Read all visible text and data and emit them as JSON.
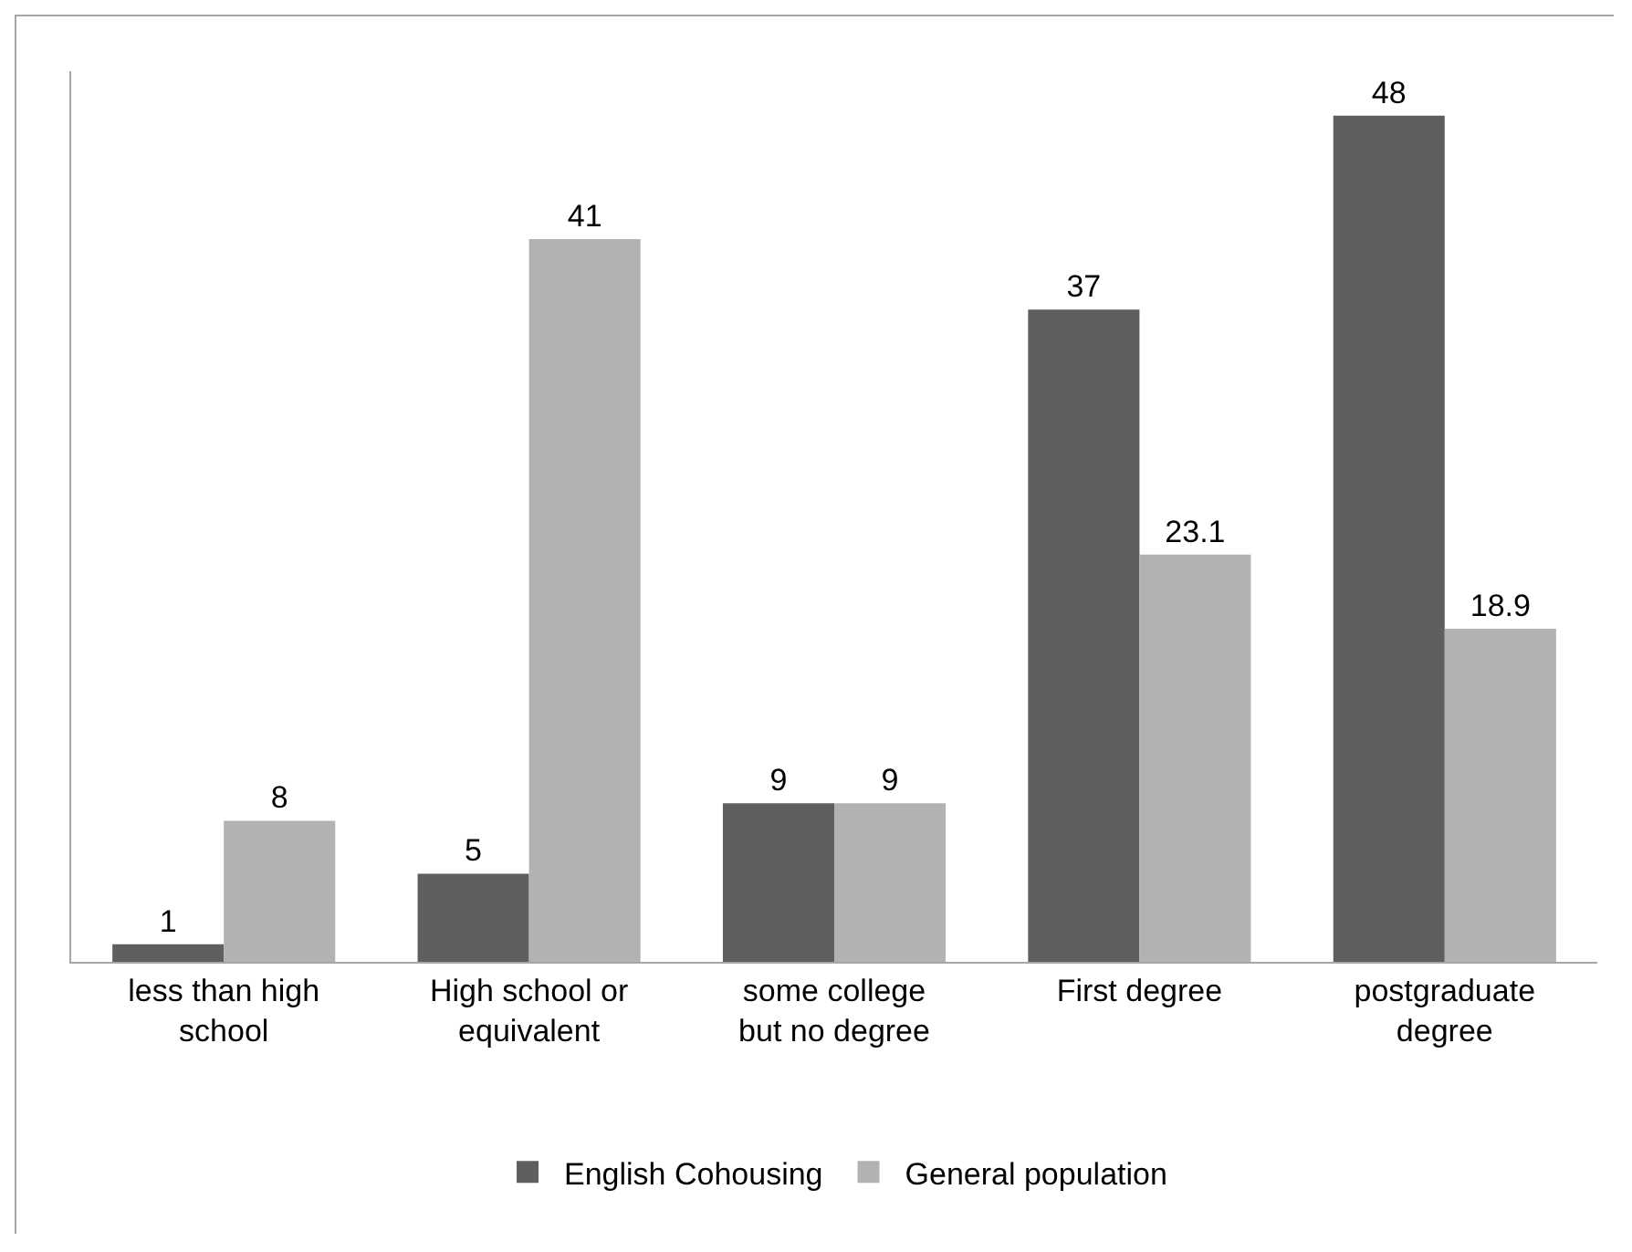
{
  "chart_data": {
    "type": "bar",
    "categories": [
      "less than high school",
      "High school or equivalent",
      "some college but no degree",
      "First degree",
      "postgraduate degree"
    ],
    "series": [
      {
        "name": "English Cohousing",
        "color": "#5f5f5f",
        "values": [
          1,
          5,
          9,
          37,
          48
        ]
      },
      {
        "name": "General population",
        "color": "#b2b2b2",
        "values": [
          8,
          41,
          9,
          23.1,
          18.9
        ]
      }
    ],
    "data_labels": true,
    "legend": "bottom",
    "grid": false,
    "tick_labels": "x"
  }
}
